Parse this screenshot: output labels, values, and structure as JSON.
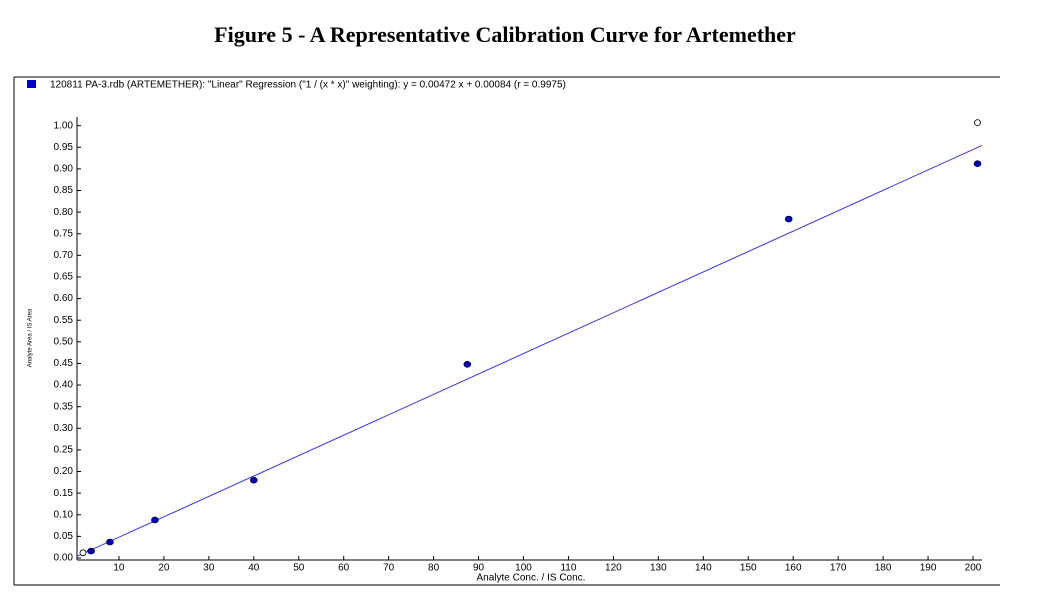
{
  "chart_data": {
    "type": "scatter",
    "title": "Figure 5 - A Representative Calibration Curve for Artemether",
    "x_label": "Analyte Conc. / IS Conc.",
    "y_label": "Analyte Area / IS Area",
    "series": [
      {
        "name": "120811 PA-3.rdb (ARTEMETHER): \"Linear\" Regression (\"1 / (x * x)\" weighting): y = 0.00472 x + 0.00084 (r = 0.9975)",
        "color": "#0000cc",
        "x": [
          3.8,
          8,
          18,
          40,
          87.5,
          159,
          201
        ],
        "values": [
          0.016,
          0.037,
          0.088,
          0.18,
          0.448,
          0.784,
          0.912
        ]
      }
    ],
    "excluded": {
      "x": [
        2.0,
        201
      ],
      "values": [
        0.012,
        1.007
      ]
    },
    "fit": {
      "slope": 0.00472,
      "intercept": 0.00084,
      "color": "#3333ee"
    },
    "xlim": [
      0,
      202
    ],
    "ylim": [
      0,
      1.02
    ],
    "xticks": [
      10,
      20,
      30,
      40,
      50,
      60,
      70,
      80,
      90,
      100,
      110,
      120,
      130,
      140,
      150,
      160,
      170,
      180,
      190,
      200
    ],
    "yticks": [
      {
        "value": 0,
        "label": "0.00"
      },
      {
        "value": 0.05,
        "label": "0.05"
      },
      {
        "value": 0.1,
        "label": "0.10"
      },
      {
        "value": 0.15,
        "label": "0.15"
      },
      {
        "value": 0.2,
        "label": "0.20"
      },
      {
        "value": 0.25,
        "label": "0.25"
      },
      {
        "value": 0.3,
        "label": "0.30"
      },
      {
        "value": 0.35,
        "label": "0.35"
      },
      {
        "value": 0.4,
        "label": "0.40"
      },
      {
        "value": 0.45,
        "label": "0.45"
      },
      {
        "value": 0.5,
        "label": "0.50"
      },
      {
        "value": 0.55,
        "label": "0.55"
      },
      {
        "value": 0.6,
        "label": "0.60"
      },
      {
        "value": 0.65,
        "label": "0.65"
      },
      {
        "value": 0.7,
        "label": "0.70"
      },
      {
        "value": 0.75,
        "label": "0.75"
      },
      {
        "value": 0.8,
        "label": "0.80"
      },
      {
        "value": 0.85,
        "label": "0.85"
      },
      {
        "value": 0.9,
        "label": "0.90"
      },
      {
        "value": 0.95,
        "label": "0.95"
      },
      {
        "value": 1,
        "label": "1.00"
      }
    ]
  }
}
